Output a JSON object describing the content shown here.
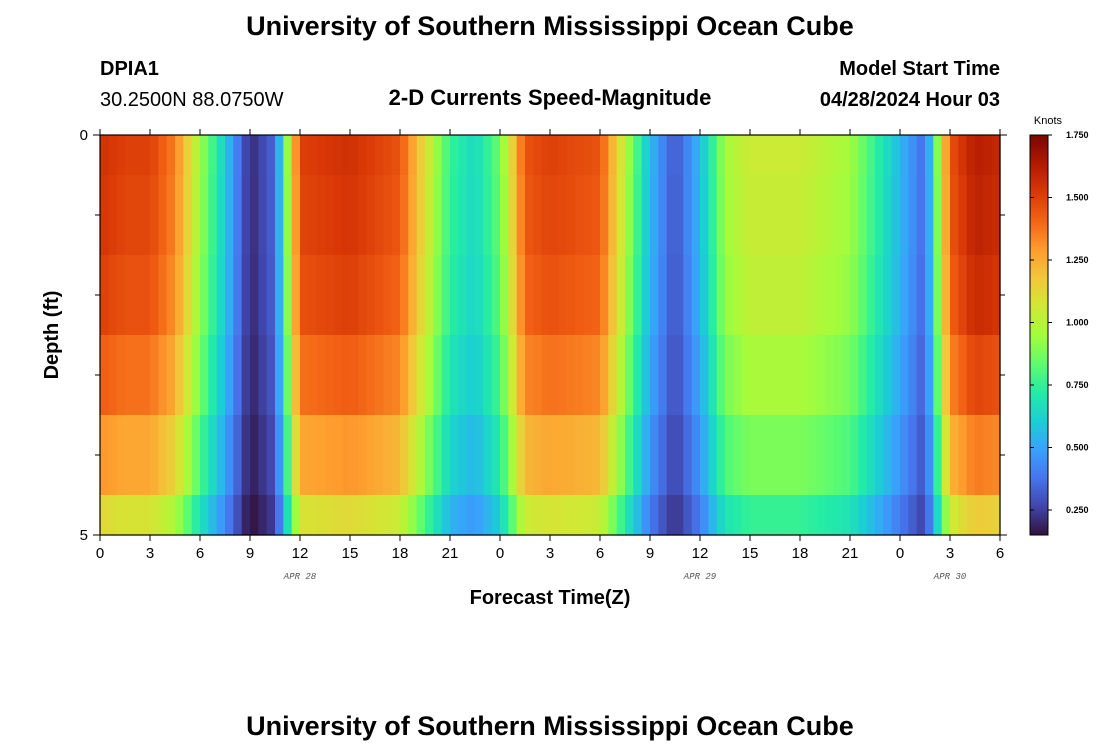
{
  "page": {
    "top_title": "University of Southern Mississippi Ocean Cube",
    "bottom_title": "University of Southern Mississippi Ocean Cube",
    "station_id": "DPIA1",
    "station_coords": "30.2500N  88.0750W",
    "plot_title": "2-D Currents Speed-Magnitude",
    "model_start_label": "Model Start Time",
    "model_start_value": "04/28/2024 Hour 03"
  },
  "colors": {
    "colormap": [
      "#30123b",
      "#4145ab",
      "#4675ed",
      "#39a2fc",
      "#1bcfd4",
      "#24eca6",
      "#61fc6c",
      "#a4fc3b",
      "#d1e834",
      "#f3c63a",
      "#fe9b2d",
      "#f36315",
      "#d93806",
      "#b11901",
      "#7a0402"
    ]
  },
  "chart_data": {
    "type": "heatmap",
    "title": "2-D Currents Speed-Magnitude",
    "xlabel": "Forecast Time(Z)",
    "ylabel": "Depth (ft)",
    "colorbar_label": "Knots",
    "colorbar_range": [
      0.15,
      1.75
    ],
    "colorbar_ticks": [
      0.25,
      0.5,
      0.75,
      1.0,
      1.25,
      1.5,
      1.75
    ],
    "colorbar_tick_labels": [
      "0.250",
      "0.500",
      "0.750",
      "1.000",
      "1.250",
      "1.500",
      "1.750"
    ],
    "ylim": [
      0,
      5
    ],
    "y_tick_values": [
      0,
      5
    ],
    "y_tick_labels": [
      "0",
      "5"
    ],
    "y_minor_ticks": [
      1,
      2,
      3,
      4
    ],
    "xlim": [
      0,
      54
    ],
    "x_tick_values": [
      0,
      3,
      6,
      9,
      12,
      15,
      18,
      21,
      24,
      27,
      30,
      33,
      36,
      39,
      42,
      45,
      48,
      51,
      54
    ],
    "x_tick_labels": [
      "0",
      "3",
      "6",
      "9",
      "12",
      "15",
      "18",
      "21",
      "0",
      "3",
      "6",
      "9",
      "12",
      "15",
      "18",
      "21",
      "0",
      "3",
      "6"
    ],
    "date_labels": [
      {
        "text": "APR 28",
        "at_hour": 12
      },
      {
        "text": "APR 29",
        "at_hour": 36
      },
      {
        "text": "APR 30",
        "at_hour": 51
      }
    ],
    "depth_layers": [
      0,
      0.5,
      1.5,
      2.5,
      3.5,
      4.5
    ],
    "time_hours": [
      0,
      1.5,
      3,
      4.5,
      6,
      7.5,
      9,
      10.5,
      12,
      15,
      18,
      19.5,
      21,
      22.5,
      24,
      25.5,
      27,
      30,
      31.5,
      33,
      34.5,
      36,
      37.5,
      39,
      42,
      45,
      48,
      49.5,
      51,
      52.5,
      54
    ],
    "surface_speed": [
      1.55,
      1.5,
      1.5,
      1.35,
      0.95,
      0.6,
      0.2,
      0.35,
      1.5,
      1.55,
      1.45,
      1.1,
      0.75,
      0.65,
      0.85,
      1.45,
      1.5,
      1.45,
      1.0,
      0.55,
      0.3,
      0.55,
      0.95,
      1.05,
      1.05,
      0.95,
      0.55,
      0.35,
      1.45,
      1.62,
      1.58
    ],
    "depth_factors": [
      1.0,
      0.99,
      0.97,
      0.92,
      0.84,
      0.72
    ]
  }
}
